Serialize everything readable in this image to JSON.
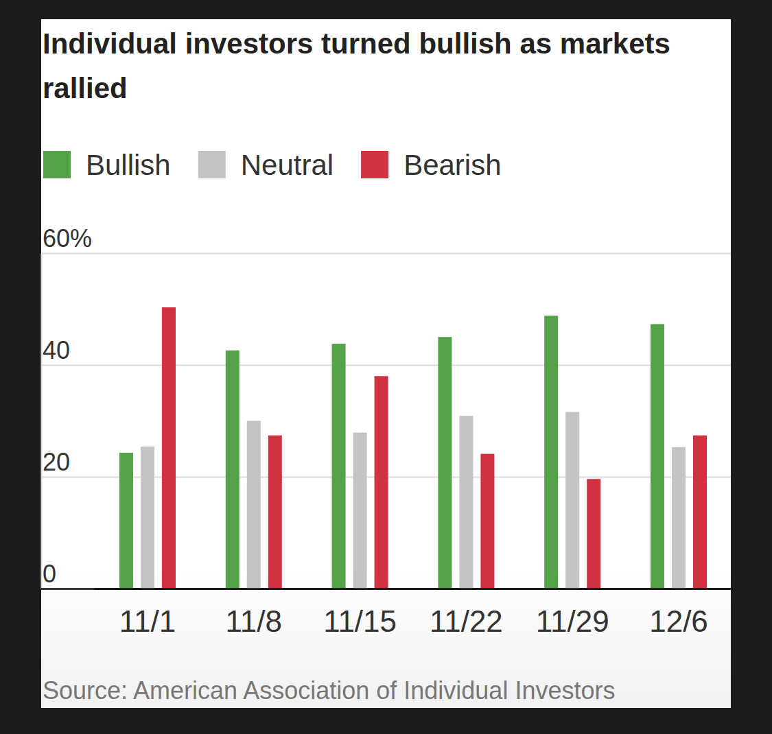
{
  "chart_data": {
    "type": "bar",
    "title": "Individual investors turned bullish as markets rallied",
    "categories": [
      "11/1",
      "11/8",
      "11/15",
      "11/22",
      "11/29",
      "12/6"
    ],
    "series": [
      {
        "name": "Bullish",
        "color": "#55a24a",
        "values": [
          24.3,
          42.6,
          43.8,
          45.0,
          48.8,
          47.3
        ]
      },
      {
        "name": "Neutral",
        "color": "#c4c4c4",
        "values": [
          25.4,
          30.0,
          27.9,
          30.9,
          31.6,
          25.3
        ]
      },
      {
        "name": "Bearish",
        "color": "#d0333f",
        "values": [
          50.3,
          27.4,
          38.0,
          24.1,
          19.6,
          27.4
        ]
      }
    ],
    "ylim": [
      0,
      60
    ],
    "yticks": [
      0,
      20,
      40,
      {
        "value": 60,
        "label": "60%"
      }
    ],
    "grid": true,
    "legend": "top-left",
    "source": "Source: American Association of Individual Investors"
  }
}
